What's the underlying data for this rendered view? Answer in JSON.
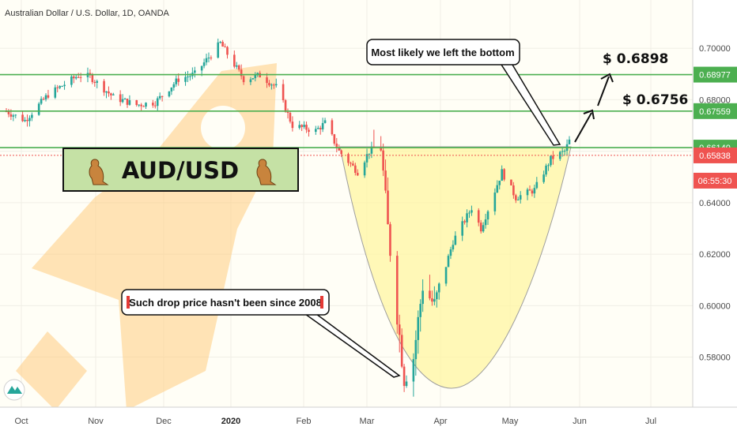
{
  "title": "Australian Dollar / U.S. Dollar, 1D, OANDA",
  "colors": {
    "up": "#26a69a",
    "down": "#ef5350",
    "level_line": "#4caf50",
    "bowl_fill": "#fff59d",
    "rocket": "#ffcc80",
    "banner_bg": "#c5e1a5",
    "current_price": "#ef5350"
  },
  "chart_data": {
    "type": "candlestick",
    "x_tick_labels": [
      "Oct",
      "Nov",
      "Dec",
      "2020",
      "Feb",
      "Mar",
      "Apr",
      "May",
      "Jun",
      "Jul"
    ],
    "y_tick_labels": [
      "0.70000",
      "0.68000",
      "0.66000",
      "0.64000",
      "0.62000",
      "0.60000",
      "0.58000"
    ],
    "ylim": [
      0.563,
      0.7065
    ],
    "series_path": [
      [
        "2019-09-30",
        0.6755
      ],
      [
        "2019-10-08",
        0.672
      ],
      [
        "2019-10-18",
        0.682
      ],
      [
        "2019-10-31",
        0.6895
      ],
      [
        "2019-11-05",
        0.689
      ],
      [
        "2019-11-15",
        0.681
      ],
      [
        "2019-11-25",
        0.678
      ],
      [
        "2019-12-03",
        0.679
      ],
      [
        "2019-12-13",
        0.688
      ],
      [
        "2019-12-20",
        0.69
      ],
      [
        "2019-12-31",
        0.702
      ],
      [
        "2020-01-10",
        0.688
      ],
      [
        "2020-01-17",
        0.6895
      ],
      [
        "2020-01-24",
        0.685
      ],
      [
        "2020-01-31",
        0.67
      ],
      [
        "2020-02-10",
        0.668
      ],
      [
        "2020-02-14",
        0.671
      ],
      [
        "2020-02-20",
        0.66
      ],
      [
        "2020-02-28",
        0.652
      ],
      [
        "2020-03-04",
        0.66
      ],
      [
        "2020-03-09",
        0.662
      ],
      [
        "2020-03-12",
        0.63
      ],
      [
        "2020-03-18",
        0.58
      ],
      [
        "2020-03-19",
        0.572
      ],
      [
        "2020-03-23",
        0.58
      ],
      [
        "2020-03-27",
        0.608
      ],
      [
        "2020-04-01",
        0.6
      ],
      [
        "2020-04-09",
        0.625
      ],
      [
        "2020-04-17",
        0.638
      ],
      [
        "2020-04-21",
        0.63
      ],
      [
        "2020-04-30",
        0.652
      ],
      [
        "2020-05-06",
        0.642
      ],
      [
        "2020-05-14",
        0.645
      ],
      [
        "2020-05-21",
        0.657
      ],
      [
        "2020-05-27",
        0.66
      ],
      [
        "2020-05-29",
        0.664
      ]
    ],
    "horizontal_levels": [
      {
        "price": 0.68977,
        "label": "0.68977"
      },
      {
        "price": 0.67559,
        "label": "0.67559"
      },
      {
        "price": 0.6614,
        "label": "0.66140"
      }
    ],
    "current_price": {
      "price": 0.65838,
      "label": "0.65838",
      "countdown": "06:55:30"
    },
    "targets": [
      {
        "label": "$ 0.6898",
        "price": 0.6898
      },
      {
        "label": "$ 0.6756",
        "price": 0.6756
      }
    ]
  },
  "annotations": {
    "bottom_callout": "Most likely we left the bottom",
    "drop_callout": "Such drop price hasn't been since 2008",
    "banner": "AUD/USD"
  }
}
